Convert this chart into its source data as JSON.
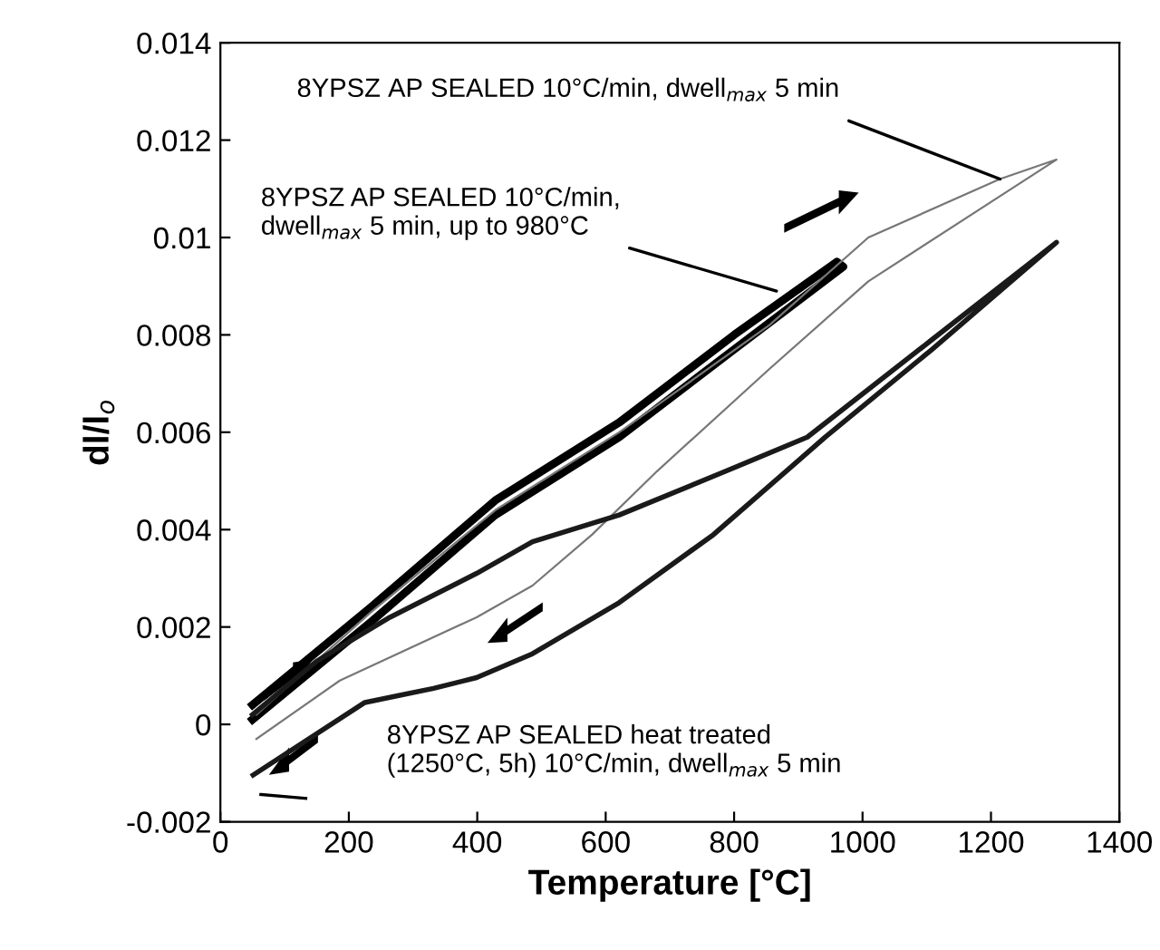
{
  "chart_data": {
    "type": "line",
    "xlabel": "Temperature [°C]",
    "ylabel": "dl/l$_{o}$",
    "xlim": [
      0,
      1400
    ],
    "xticks": [
      0,
      200,
      400,
      600,
      800,
      1000,
      1200,
      1400
    ],
    "ylim": [
      -0.002,
      0.014
    ],
    "yticks": [
      {
        "value": -0.002,
        "label": "-0.002"
      },
      0,
      0.002,
      0.004,
      0.006,
      0.008,
      0.01,
      0.012,
      0.014
    ],
    "grid": false,
    "legend": false,
    "marker": "none",
    "line_style": "solid",
    "series": [
      {
        "color": "#000000",
        "x": [
          50,
          234,
          428,
          621,
          800,
          970,
          960,
          800,
          621,
          428,
          234,
          50
        ],
        "values": [
          0.0001,
          0.0021,
          0.0043,
          0.0059,
          0.0077,
          0.0094,
          0.0095,
          0.008,
          0.0062,
          0.0046,
          0.0024,
          0.0004
        ]
      },
      {
        "color": "#777777",
        "x": [
          56,
          186,
          399,
          486,
          579,
          680,
          855,
          1009,
          1302,
          1214,
          1009,
          855,
          621,
          428,
          234,
          56
        ],
        "values": [
          -0.0003,
          0.0009,
          0.0022,
          0.00285,
          0.0039,
          0.0052,
          0.0073,
          0.0091,
          0.0116,
          0.0112,
          0.01,
          0.0082,
          0.006,
          0.0044,
          0.0023,
          0.0002
        ]
      },
      {
        "color": "#1a1a1a",
        "x": [
          51,
          225,
          332,
          399,
          486,
          621,
          768,
          942,
          1108,
          1302,
          1108,
          914,
          787,
          621,
          486,
          399,
          264,
          150,
          50
        ],
        "values": [
          -0.00104,
          0.00045,
          0.00074,
          0.00096,
          0.00145,
          0.0025,
          0.0039,
          0.0059,
          0.0077,
          0.0099,
          0.0079,
          0.0059,
          0.0052,
          0.0043,
          0.00375,
          0.0031,
          0.0022,
          0.0013,
          0.0002
        ]
      }
    ],
    "annotations": [
      {
        "text": "8YPSZ AP SEALED 10°C/min, dwell$_{max}$ 5 min",
        "x": 1214,
        "y": 0.0112
      },
      {
        "text": "8YPSZ AP SEALED 10°C/min,\ndwell$_{max}$ 5 min, up to 980°C",
        "x": 866,
        "y": 0.0089
      },
      "8YPSZ AP SEALED heat treated\n(1250°C, 5h) 10°C/min, dwell$_{max}$ 5 min"
    ]
  }
}
